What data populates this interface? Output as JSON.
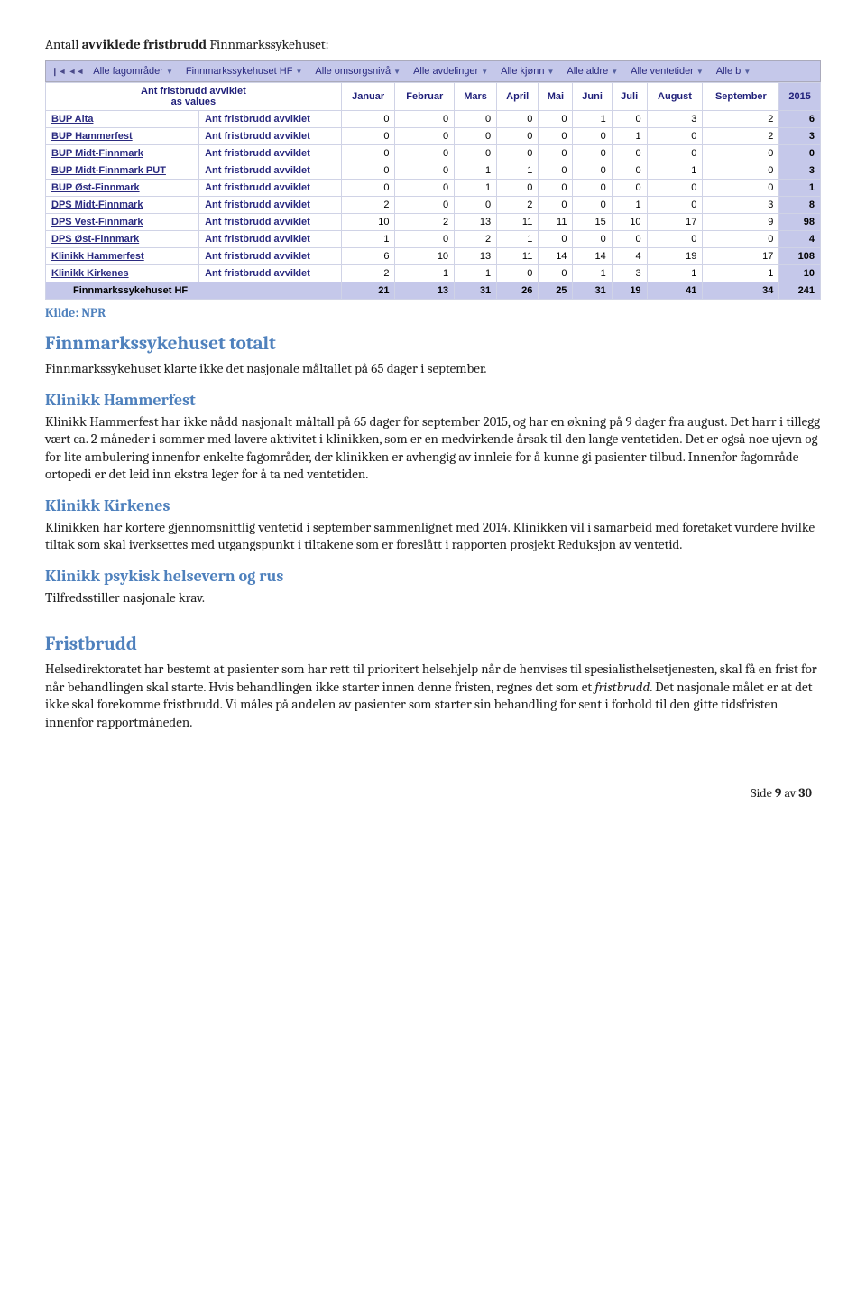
{
  "title_prefix": "Antall ",
  "title_bold": "avviklede fristbrudd",
  "title_suffix": " Finnmarkssykehuset:",
  "source_label": "Kilde: NPR",
  "crumb": {
    "items": [
      "Alle fagområder",
      "Finnmarkssykehuset HF",
      "Alle omsorgsnivå",
      "Alle avdelinger",
      "Alle kjønn",
      "Alle aldre",
      "Alle ventetider",
      "Alle b"
    ]
  },
  "table": {
    "header_block_line1": "Ant fristbrudd avviklet",
    "header_block_line2": "as values",
    "months": [
      "Januar",
      "Februar",
      "Mars",
      "April",
      "Mai",
      "Juni",
      "Juli",
      "August",
      "September"
    ],
    "year": "2015",
    "desc": "Ant fristbrudd avviklet",
    "rows": [
      {
        "label": "BUP Alta",
        "v": [
          0,
          0,
          0,
          0,
          0,
          1,
          0,
          3,
          2
        ],
        "t": 6
      },
      {
        "label": "BUP Hammerfest",
        "v": [
          0,
          0,
          0,
          0,
          0,
          0,
          1,
          0,
          2
        ],
        "t": 3
      },
      {
        "label": "BUP Midt-Finnmark",
        "v": [
          0,
          0,
          0,
          0,
          0,
          0,
          0,
          0,
          0
        ],
        "t": 0
      },
      {
        "label": "BUP Midt-Finnmark PUT",
        "v": [
          0,
          0,
          1,
          1,
          0,
          0,
          0,
          1,
          0
        ],
        "t": 3
      },
      {
        "label": "BUP Øst-Finnmark",
        "v": [
          0,
          0,
          1,
          0,
          0,
          0,
          0,
          0,
          0
        ],
        "t": 1
      },
      {
        "label": "DPS Midt-Finnmark",
        "v": [
          2,
          0,
          0,
          2,
          0,
          0,
          1,
          0,
          3
        ],
        "t": 8
      },
      {
        "label": "DPS Vest-Finnmark",
        "v": [
          10,
          2,
          13,
          11,
          11,
          15,
          10,
          17,
          9
        ],
        "t": 98
      },
      {
        "label": "DPS Øst-Finnmark",
        "v": [
          1,
          0,
          2,
          1,
          0,
          0,
          0,
          0,
          0
        ],
        "t": 4
      },
      {
        "label": "Klinikk Hammerfest",
        "v": [
          6,
          10,
          13,
          11,
          14,
          14,
          4,
          19,
          17
        ],
        "t": 108
      },
      {
        "label": "Klinikk Kirkenes",
        "v": [
          2,
          1,
          1,
          0,
          0,
          1,
          3,
          1,
          1
        ],
        "t": 10
      }
    ],
    "total_label": "Finnmarkssykehuset HF",
    "total_v": [
      21,
      13,
      31,
      26,
      25,
      31,
      19,
      41,
      34
    ],
    "total_t": 241
  },
  "sections": {
    "fin_total_h": "Finnmarkssykehuset totalt",
    "fin_total_p": "Finnmarkssykehuset klarte ikke det nasjonale måltallet på 65 dager i september.",
    "hammerfest_h": "Klinikk Hammerfest",
    "hammerfest_p": "Klinikk Hammerfest har ikke nådd nasjonalt måltall på 65 dager for september 2015, og har en økning på 9 dager fra august. Det harr i tillegg vært ca. 2 måneder i sommer med lavere aktivitet i klinikken, som er en medvirkende årsak til den lange ventetiden. Det er også noe ujevn og for lite ambulering innenfor enkelte fagområder, der klinikken er avhengig av innleie for å kunne gi pasienter tilbud. Innenfor fagområde ortopedi er det leid inn ekstra leger for å ta ned ventetiden.",
    "kirkenes_h": "Klinikk Kirkenes",
    "kirkenes_p": "Klinikken har kortere gjennomsnittlig ventetid i september sammenlignet med 2014. Klinikken vil i samarbeid med foretaket vurdere hvilke tiltak som skal iverksettes med utgangspunkt i tiltakene som er foreslått i rapporten prosjekt Reduksjon av ventetid.",
    "psyk_h": "Klinikk psykisk helsevern og rus",
    "psyk_p": "Tilfredsstiller nasjonale krav.",
    "fristbrudd_h": "Fristbrudd",
    "fristbrudd_p1a": "Helsedirektoratet har bestemt at pasienter som har rett til prioritert helsehjelp når de henvises til spesialisthelsetjenesten, skal få en frist for når behandlingen skal starte. Hvis behandlingen ikke starter innen denne fristen, regnes det som et ",
    "fristbrudd_em": "fristbrudd",
    "fristbrudd_p1b": ". Det nasjonale målet er at det ikke skal forekomme fristbrudd. Vi måles på andelen av pasienter som starter sin behandling for sent i forhold til den gitte tidsfristen innenfor rapportmåneden."
  },
  "footer_a": "Side ",
  "footer_b": "9",
  "footer_c": " av ",
  "footer_d": "30"
}
